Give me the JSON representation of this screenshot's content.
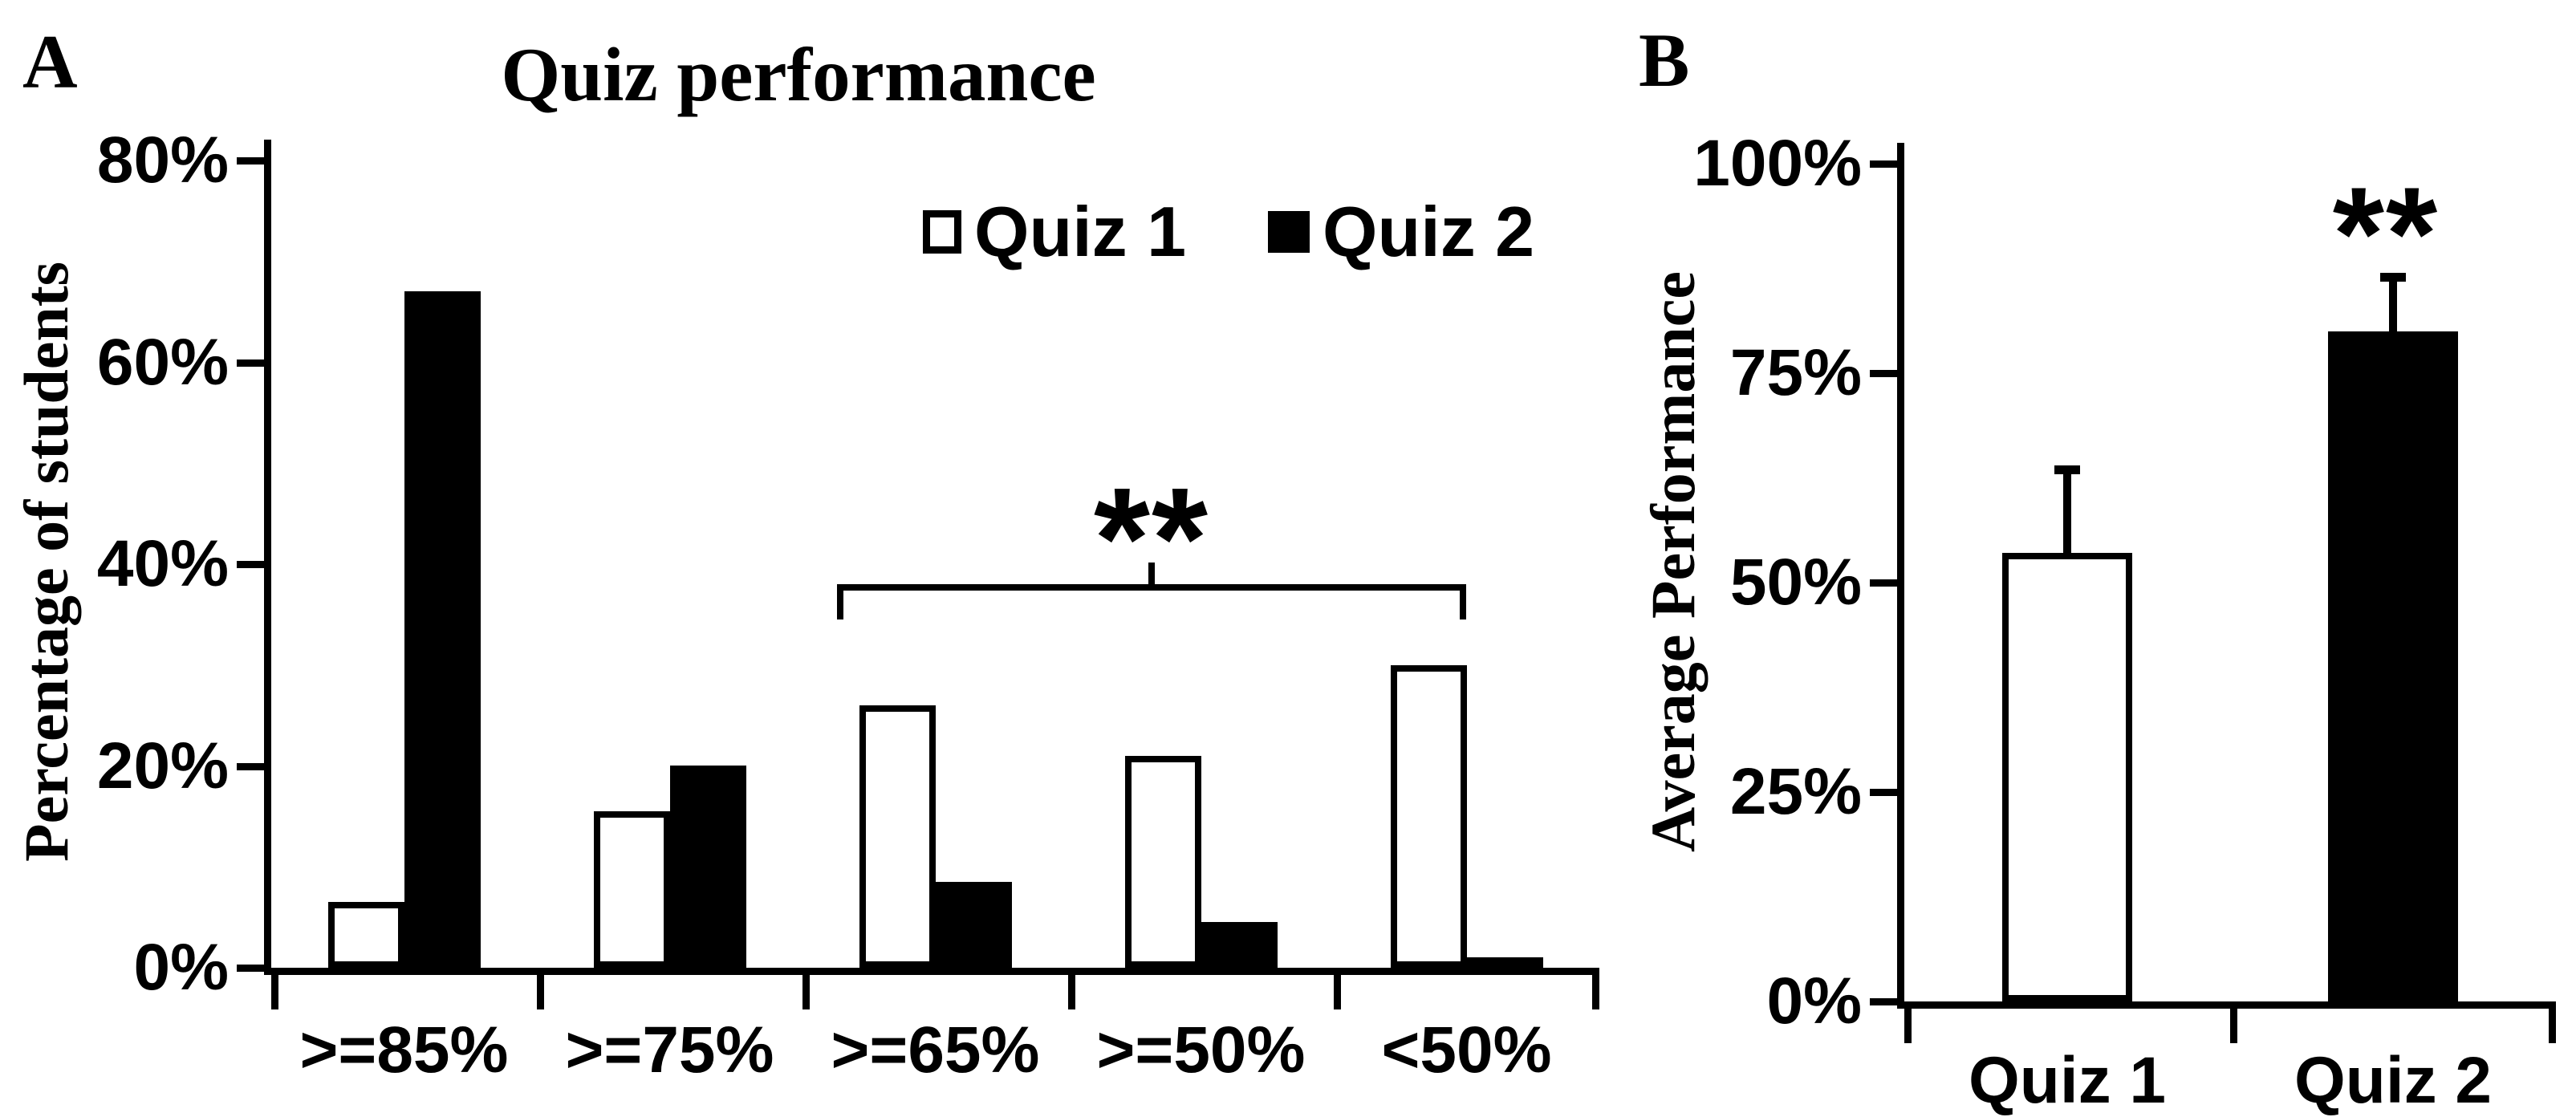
{
  "figure": {
    "panels": [
      {
        "letter": "A"
      },
      {
        "letter": "B"
      }
    ]
  },
  "chart_data": [
    {
      "type": "bar",
      "panel": "A",
      "title": "Quiz performance",
      "xlabel": "",
      "ylabel": "Percentage of students",
      "categories": [
        ">=85%",
        ">=75%",
        ">=65%",
        ">=50%",
        "<50%"
      ],
      "series": [
        {
          "name": "Quiz 1",
          "fill": "#ffffff",
          "values": [
            6.5,
            15.5,
            26,
            21,
            30
          ]
        },
        {
          "name": "Quiz 2",
          "fill": "#000000",
          "values": [
            67,
            20,
            8.5,
            4.5,
            1
          ]
        }
      ],
      "ylim": [
        0,
        80
      ],
      "yticks": [
        0,
        20,
        40,
        60,
        80
      ],
      "ytick_labels": [
        "0%",
        "20%",
        "40%",
        "60%",
        "80%"
      ],
      "grid": false,
      "legend_position": "top-right-inside",
      "annotation": {
        "text": "**",
        "note": "significance bracket spanning >=65%, >=50% and <50% groups"
      }
    },
    {
      "type": "bar",
      "panel": "B",
      "title": "",
      "xlabel": "",
      "ylabel": "Average Performance",
      "categories": [
        "Quiz 1",
        "Quiz 2"
      ],
      "series": [
        {
          "name": "Average performance",
          "values": [
            53.5,
            80
          ]
        }
      ],
      "bar_fills": [
        "#ffffff",
        "#000000"
      ],
      "error_bars_plus": [
        10,
        6.5
      ],
      "ylim": [
        0,
        100
      ],
      "yticks": [
        0,
        25,
        50,
        75,
        100
      ],
      "ytick_labels": [
        "0%",
        "25%",
        "50%",
        "75%",
        "100%"
      ],
      "grid": false,
      "annotation": {
        "text": "**",
        "note": "above Quiz 2 bar"
      }
    }
  ],
  "colors": {
    "ink": "#000000",
    "background": "#ffffff"
  }
}
